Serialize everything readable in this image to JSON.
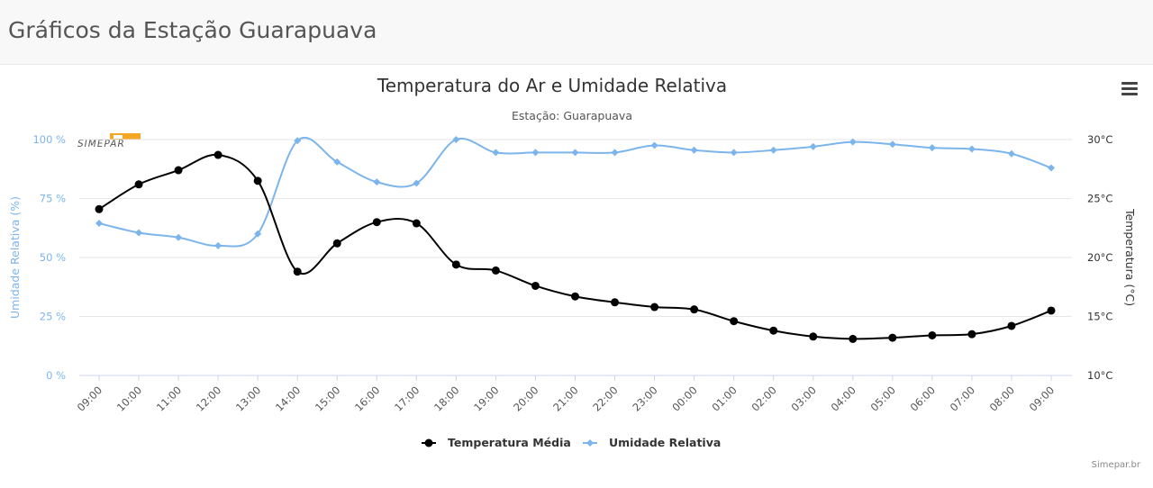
{
  "page": {
    "title": "Gráficos da Estação Guarapuava"
  },
  "credits": "Simepar.br",
  "logo_text": "SIMEPAR",
  "chart_data": {
    "type": "line",
    "title": "Temperatura do Ar e Umidade Relativa",
    "subtitle": "Estação: Guarapuava",
    "categories": [
      "09:00",
      "10:00",
      "11:00",
      "12:00",
      "13:00",
      "14:00",
      "15:00",
      "16:00",
      "17:00",
      "18:00",
      "19:00",
      "20:00",
      "21:00",
      "22:00",
      "23:00",
      "00:00",
      "01:00",
      "02:00",
      "03:00",
      "04:00",
      "05:00",
      "06:00",
      "07:00",
      "08:00",
      "09:00"
    ],
    "y_left": {
      "label": "Umidade Relativa (%)",
      "ticks": [
        "0 %",
        "25 %",
        "50 %",
        "75 %",
        "100 %"
      ],
      "range": [
        0,
        100
      ]
    },
    "y_right": {
      "label": "Temperatura (°C)",
      "ticks": [
        "10°C",
        "15°C",
        "20°C",
        "25°C",
        "30°C"
      ],
      "range": [
        10,
        30
      ]
    },
    "series": [
      {
        "name": "Temperatura Média",
        "axis": "right",
        "color": "#000000",
        "marker": "circle",
        "values": [
          24.1,
          26.2,
          27.4,
          28.7,
          26.5,
          18.8,
          21.2,
          23.0,
          22.9,
          19.4,
          18.9,
          17.6,
          16.7,
          16.2,
          15.8,
          15.6,
          14.6,
          13.8,
          13.3,
          13.1,
          13.2,
          13.4,
          13.5,
          14.2,
          15.5
        ]
      },
      {
        "name": "Umidade Relativa",
        "axis": "left",
        "color": "#7cb5ec",
        "marker": "diamond",
        "values": [
          64.5,
          60.5,
          58.5,
          55.0,
          60.0,
          99.5,
          90.5,
          82.0,
          81.5,
          100.0,
          94.5,
          94.5,
          94.5,
          94.5,
          97.5,
          95.5,
          94.5,
          95.5,
          97.0,
          99.0,
          98.0,
          96.5,
          96.0,
          94.0,
          88.0
        ]
      }
    ],
    "legend_position": "bottom-center",
    "grid": true
  }
}
